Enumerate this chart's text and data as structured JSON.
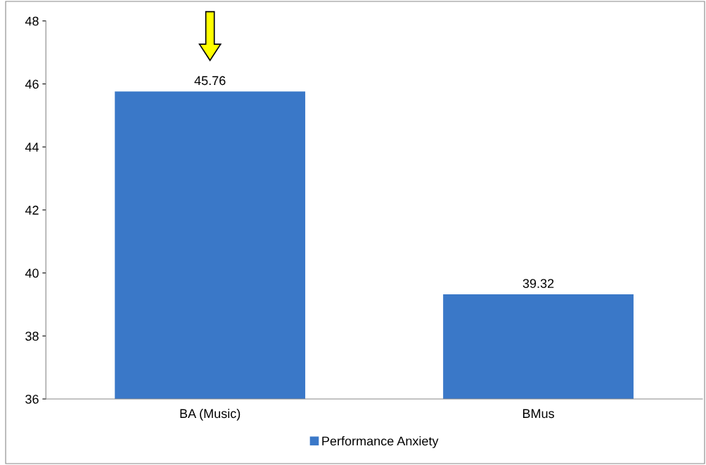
{
  "chart_data": {
    "type": "bar",
    "categories": [
      "BA (Music)",
      "BMus"
    ],
    "series": [
      {
        "name": "Performance Anxiety",
        "color": "#3a78c8",
        "values": [
          45.76,
          39.32
        ]
      }
    ],
    "ylim": [
      36,
      48
    ],
    "yticks": [
      36,
      38,
      40,
      42,
      44,
      46,
      48
    ],
    "data_labels": true,
    "grid": false,
    "legend": "bottom"
  }
}
